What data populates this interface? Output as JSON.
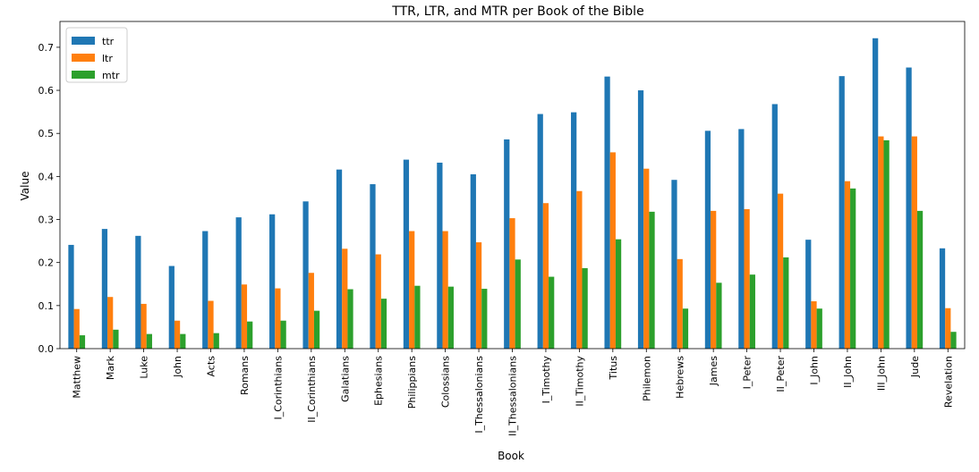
{
  "chart_data": {
    "type": "bar",
    "title": "TTR, LTR, and MTR per Book of the Bible",
    "xlabel": "Book",
    "ylabel": "Value",
    "ylim": [
      0,
      0.76
    ],
    "yticks": [
      "0.0",
      "0.1",
      "0.2",
      "0.3",
      "0.4",
      "0.5",
      "0.6",
      "0.7"
    ],
    "grid": false,
    "legend_position": "upper-left",
    "categories": [
      "Matthew",
      "Mark",
      "Luke",
      "John",
      "Acts",
      "Romans",
      "I_Corinthians",
      "II_Corinthians",
      "Galatians",
      "Ephesians",
      "Philippians",
      "Colossians",
      "I_Thessalonians",
      "II_Thessalonians",
      "I_Timothy",
      "II_Timothy",
      "Titus",
      "Philemon",
      "Hebrews",
      "James",
      "I_Peter",
      "II_Peter",
      "I_John",
      "II_John",
      "III_John",
      "Jude",
      "Revelation"
    ],
    "series": [
      {
        "name": "ttr",
        "color": "#1f77b4",
        "values": [
          0.241,
          0.278,
          0.262,
          0.192,
          0.273,
          0.305,
          0.312,
          0.342,
          0.416,
          0.382,
          0.439,
          0.432,
          0.405,
          0.486,
          0.545,
          0.549,
          0.632,
          0.6,
          0.392,
          0.506,
          0.51,
          0.568,
          0.253,
          0.633,
          0.721,
          0.653,
          0.233
        ]
      },
      {
        "name": "ltr",
        "color": "#ff7f0e",
        "values": [
          0.092,
          0.12,
          0.104,
          0.065,
          0.111,
          0.149,
          0.14,
          0.176,
          0.232,
          0.219,
          0.273,
          0.273,
          0.247,
          0.303,
          0.338,
          0.366,
          0.456,
          0.418,
          0.208,
          0.32,
          0.324,
          0.36,
          0.11,
          0.389,
          0.493,
          0.493,
          0.094
        ]
      },
      {
        "name": "mtr",
        "color": "#2ca02c",
        "values": [
          0.031,
          0.044,
          0.034,
          0.034,
          0.036,
          0.063,
          0.065,
          0.088,
          0.138,
          0.116,
          0.146,
          0.144,
          0.139,
          0.207,
          0.167,
          0.187,
          0.254,
          0.318,
          0.093,
          0.153,
          0.172,
          0.212,
          0.093,
          0.372,
          0.484,
          0.32,
          0.039
        ]
      }
    ]
  }
}
